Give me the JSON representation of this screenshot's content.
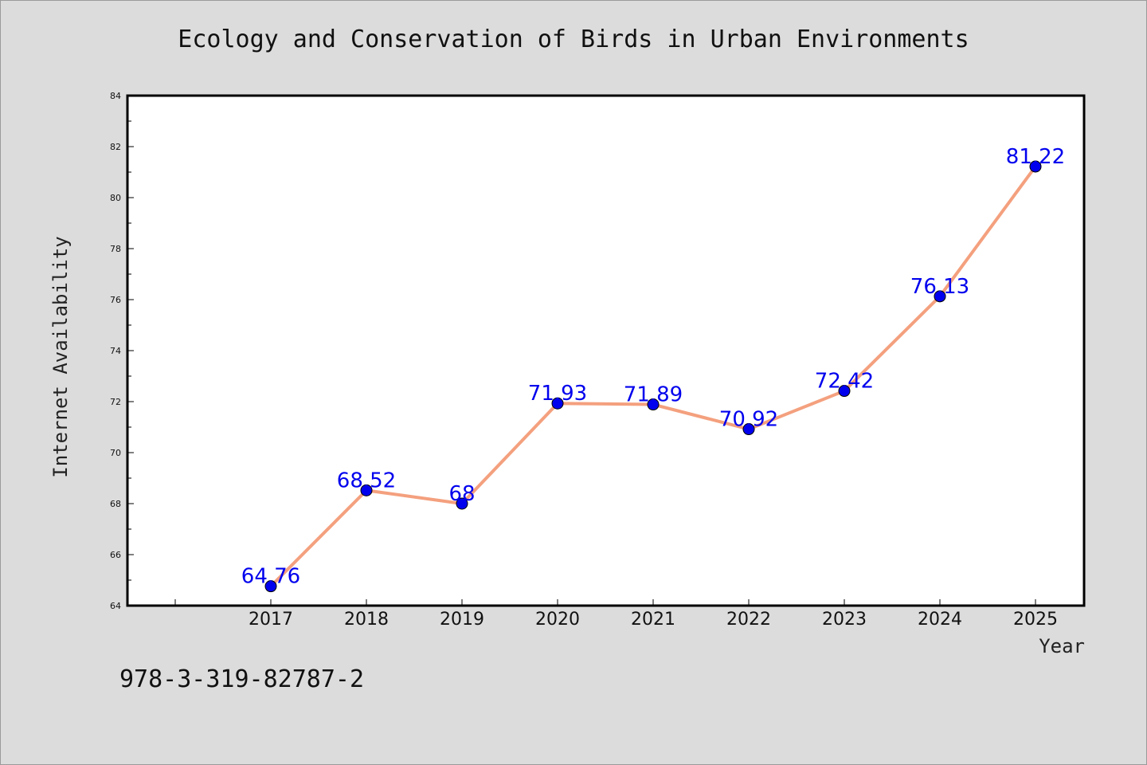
{
  "chart_data": {
    "type": "line",
    "title": "Ecology and Conservation of Birds in Urban Environments",
    "xlabel": "Year",
    "ylabel": "Internet Availability",
    "x": [
      "2017",
      "2018",
      "2019",
      "2020",
      "2021",
      "2022",
      "2023",
      "2024",
      "2025"
    ],
    "series": [
      {
        "values": [
          64.76,
          68.52,
          68,
          71.93,
          71.89,
          70.92,
          72.42,
          76.13,
          81.22
        ],
        "labels": [
          "64.76",
          "68.52",
          "68",
          "71.93",
          "71.89",
          "70.92",
          "72.42",
          "76.13",
          "81.22"
        ]
      }
    ],
    "ylim": [
      64,
      84
    ],
    "yticks": [
      "64",
      "66",
      "68",
      "70",
      "72",
      "74",
      "76",
      "78",
      "80",
      "82",
      "84"
    ],
    "grid": false,
    "legend": "none",
    "line_color": "#f4a07e",
    "marker_color": "#0000ee",
    "label_color": "#0000ee"
  },
  "footer": {
    "code": "978-3-319-82787-2"
  }
}
